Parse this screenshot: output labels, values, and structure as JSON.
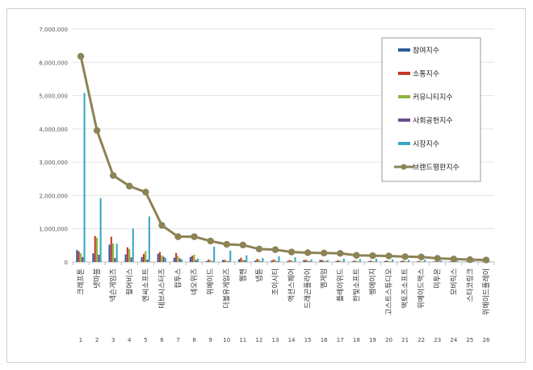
{
  "chart_data": {
    "type": "bar",
    "ylim": [
      0,
      7000000
    ],
    "yticks": [
      "0",
      "1,000,000",
      "2,000,000",
      "3,000,000",
      "4,000,000",
      "5,000,000",
      "6,000,000",
      "7,000,000"
    ],
    "grid": true,
    "legend_position": "top-right",
    "categories": [
      "크래프톤",
      "넷마블",
      "넥슨게임즈",
      "펄어비스",
      "엔씨소프트",
      "데브시스터즈",
      "컴투스",
      "네오위즈",
      "위메이드",
      "더블유게임즈",
      "웹젠",
      "넵튠",
      "조이시티",
      "액션스퀘어",
      "드래곤플라이",
      "엠게임",
      "플레이위드",
      "한빛소프트",
      "썸에이지",
      "고스트스튜디오",
      "액토즈소프트",
      "위메이드맥스",
      "미투온",
      "모비릭스",
      "스타코링크",
      "위메이드플레이"
    ],
    "ranks": [
      "1",
      "2",
      "3",
      "4",
      "5",
      "6",
      "7",
      "8",
      "9",
      "10",
      "11",
      "12",
      "13",
      "14",
      "15",
      "16",
      "17",
      "18",
      "19",
      "20",
      "21",
      "22",
      "23",
      "24",
      "25",
      "26"
    ],
    "series": [
      {
        "name": "참여지수",
        "color": "#2e5b9a",
        "kind": "bar",
        "values": [
          360000,
          260000,
          520000,
          230000,
          150000,
          250000,
          130000,
          150000,
          30000,
          60000,
          80000,
          40000,
          40000,
          30000,
          60000,
          60000,
          30000,
          20000,
          20000,
          30000,
          30000,
          20000,
          10000,
          10000,
          10000,
          10000
        ]
      },
      {
        "name": "소통지수",
        "color": "#c0392b",
        "kind": "bar",
        "values": [
          320000,
          780000,
          760000,
          440000,
          240000,
          300000,
          270000,
          190000,
          70000,
          60000,
          130000,
          90000,
          70000,
          60000,
          60000,
          60000,
          50000,
          40000,
          40000,
          40000,
          40000,
          30000,
          20000,
          20000,
          20000,
          20000
        ]
      },
      {
        "name": "커뮤니티지수",
        "color": "#8db43c",
        "kind": "bar",
        "values": [
          260000,
          730000,
          560000,
          390000,
          330000,
          200000,
          180000,
          220000,
          60000,
          40000,
          70000,
          70000,
          60000,
          50000,
          50000,
          40000,
          40000,
          40000,
          30000,
          30000,
          30000,
          20000,
          20000,
          20000,
          10000,
          10000
        ]
      },
      {
        "name": "사회공헌지수",
        "color": "#6a4c93",
        "kind": "bar",
        "values": [
          150000,
          220000,
          120000,
          140000,
          70000,
          160000,
          110000,
          60000,
          20000,
          20000,
          50000,
          20000,
          20000,
          10000,
          20000,
          20000,
          10000,
          10000,
          10000,
          10000,
          10000,
          10000,
          10000,
          10000,
          10000,
          10000
        ]
      },
      {
        "name": "시장지수",
        "color": "#3aa7c4",
        "kind": "bar",
        "values": [
          5080000,
          1920000,
          550000,
          1000000,
          1370000,
          120000,
          80000,
          100000,
          460000,
          340000,
          200000,
          120000,
          170000,
          140000,
          80000,
          60000,
          100000,
          90000,
          100000,
          80000,
          60000,
          70000,
          50000,
          40000,
          30000,
          20000
        ]
      },
      {
        "name": "브랜드평판지수",
        "color": "#8c8356",
        "kind": "line",
        "values": [
          6180000,
          3950000,
          2600000,
          2280000,
          2100000,
          1100000,
          760000,
          760000,
          630000,
          530000,
          510000,
          390000,
          370000,
          300000,
          280000,
          270000,
          260000,
          200000,
          190000,
          180000,
          160000,
          150000,
          110000,
          90000,
          70000,
          60000
        ]
      }
    ]
  }
}
